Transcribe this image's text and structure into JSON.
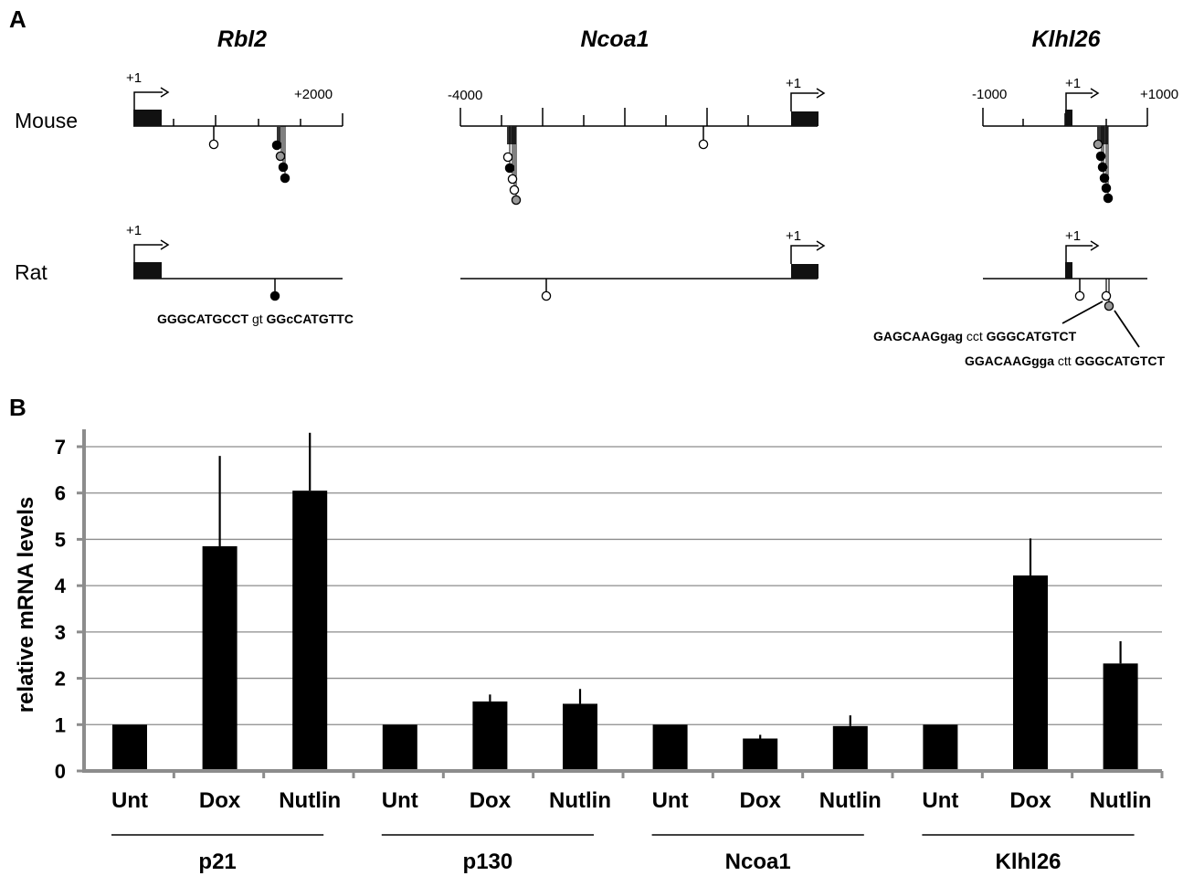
{
  "panel_a": {
    "label": "A",
    "genes": {
      "rbl2": {
        "name": "Rbl2",
        "mouse": {
          "tss": "+1",
          "end_label": "+2000"
        },
        "rat": {
          "tss": "+1",
          "seq": [
            {
              "t": "GGGCATGCCT",
              "b": true
            },
            {
              "t": " gt ",
              "b": false
            },
            {
              "t": "GGcCATGTTC",
              "b": true
            }
          ]
        }
      },
      "ncoa1": {
        "name": "Ncoa1",
        "mouse": {
          "start_label": "-4000",
          "tss": "+1"
        },
        "rat": {
          "tss": "+1"
        }
      },
      "klhl26": {
        "name": "Klhl26",
        "mouse": {
          "start_label": "-1000",
          "tss": "+1",
          "end_label": "+1000"
        },
        "rat": {
          "tss": "+1",
          "seq1": [
            {
              "t": "GAGCAAGgag",
              "b": true
            },
            {
              "t": " cct ",
              "b": false
            },
            {
              "t": "GGGCATGTCT",
              "b": true
            }
          ],
          "seq2": [
            {
              "t": "GGACAAGgga",
              "b": true
            },
            {
              "t": " ctt ",
              "b": false
            },
            {
              "t": "GGGCATGTCT",
              "b": true
            }
          ]
        }
      }
    },
    "species": {
      "mouse": "Mouse",
      "rat": "Rat"
    },
    "site_colors": {
      "black": "#000000",
      "gray": "#999999",
      "white": "#ffffff"
    }
  },
  "chart_data": {
    "type": "bar",
    "panel_label": "B",
    "ylabel": "relative mRNA levels",
    "ylim": [
      0,
      7
    ],
    "yticks": [
      0,
      1,
      2,
      3,
      4,
      5,
      6,
      7
    ],
    "grid": true,
    "bar_color": "#000000",
    "groups": [
      {
        "name": "p21",
        "bars": [
          {
            "label": "Unt",
            "value": 1.0,
            "error": 0.0
          },
          {
            "label": "Dox",
            "value": 4.85,
            "error": 1.95
          },
          {
            "label": "Nutlin",
            "value": 6.05,
            "error": 1.25
          }
        ]
      },
      {
        "name": "p130",
        "bars": [
          {
            "label": "Unt",
            "value": 1.0,
            "error": 0.0
          },
          {
            "label": "Dox",
            "value": 1.5,
            "error": 0.15
          },
          {
            "label": "Nutlin",
            "value": 1.45,
            "error": 0.32
          }
        ]
      },
      {
        "name": "Ncoa1",
        "bars": [
          {
            "label": "Unt",
            "value": 1.0,
            "error": 0.0
          },
          {
            "label": "Dox",
            "value": 0.7,
            "error": 0.08
          },
          {
            "label": "Nutlin",
            "value": 0.97,
            "error": 0.23
          }
        ]
      },
      {
        "name": "Klhl26",
        "bars": [
          {
            "label": "Unt",
            "value": 1.0,
            "error": 0.0
          },
          {
            "label": "Dox",
            "value": 4.22,
            "error": 0.8
          },
          {
            "label": "Nutlin",
            "value": 2.32,
            "error": 0.48
          }
        ]
      }
    ]
  }
}
